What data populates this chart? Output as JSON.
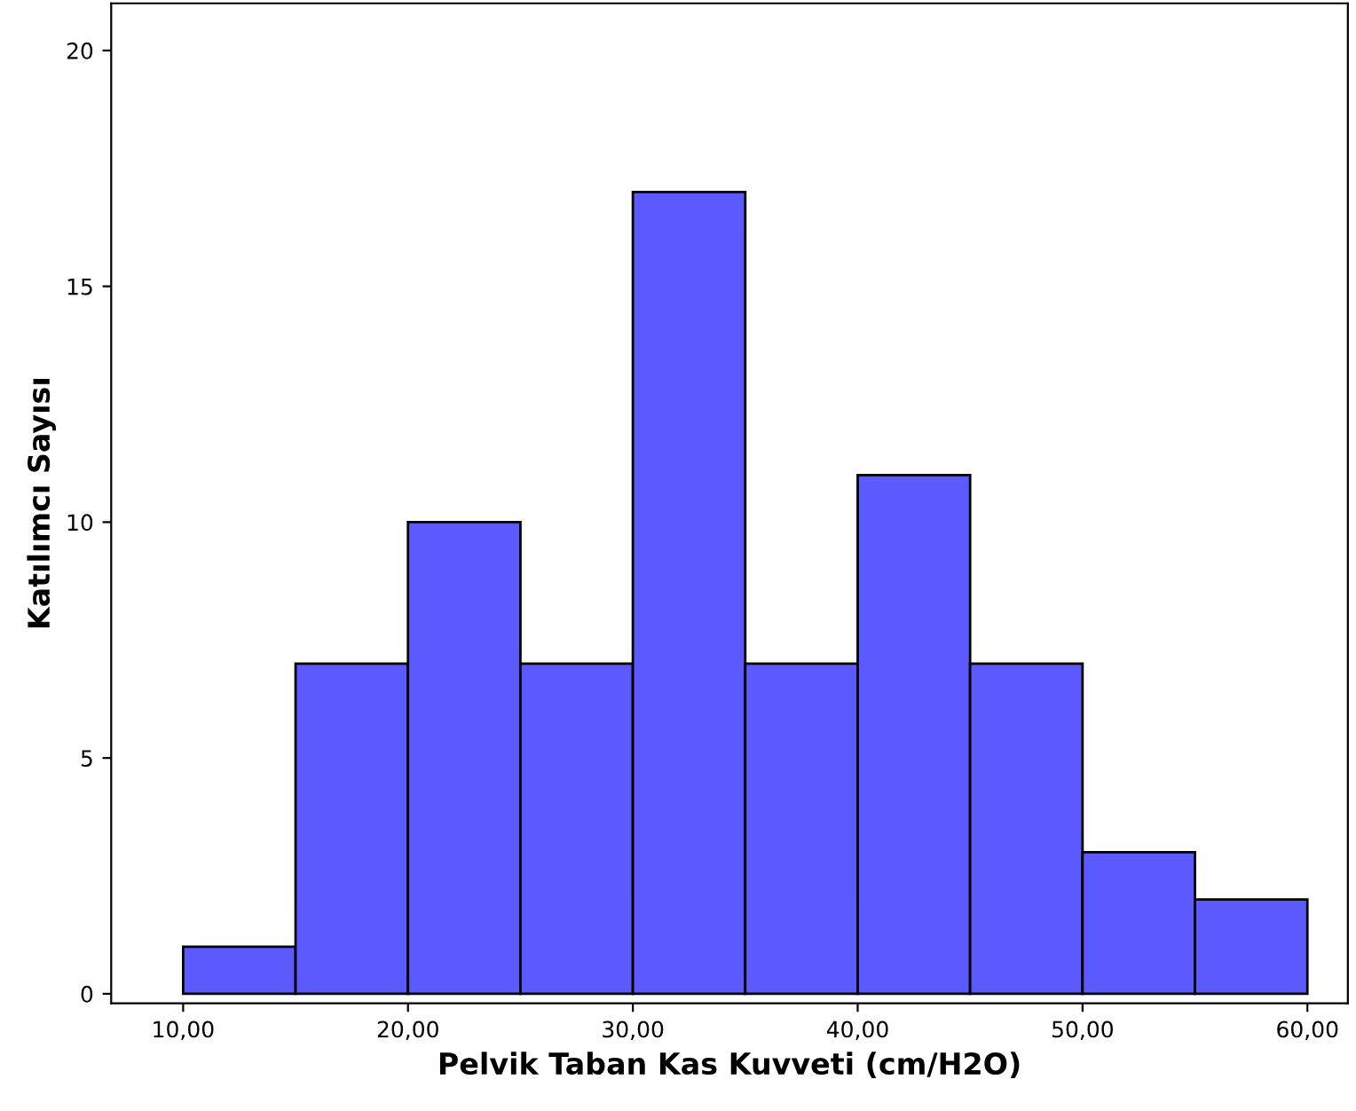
{
  "chart_data": {
    "type": "histogram",
    "xlabel": "Pelvik Taban Kas Kuvveti (cm/H2O)",
    "ylabel": "Katılımcı Sayısı",
    "bins": [
      10,
      15,
      20,
      25,
      30,
      35,
      40,
      45,
      50,
      55,
      60
    ],
    "values": [
      1,
      7,
      10,
      7,
      17,
      7,
      11,
      7,
      3,
      2
    ],
    "color": "#5a5aff",
    "xlim": [
      6.8,
      61.8
    ],
    "ylim": [
      -0.2,
      21
    ],
    "xticks": [
      {
        "value": 10,
        "label": "10,00"
      },
      {
        "value": 20,
        "label": "20,00"
      },
      {
        "value": 30,
        "label": "30,00"
      },
      {
        "value": 40,
        "label": "40,00"
      },
      {
        "value": 50,
        "label": "50,00"
      },
      {
        "value": 60,
        "label": "60,00"
      }
    ],
    "yticks": [
      0,
      5,
      10,
      15,
      20
    ],
    "grid": false
  }
}
